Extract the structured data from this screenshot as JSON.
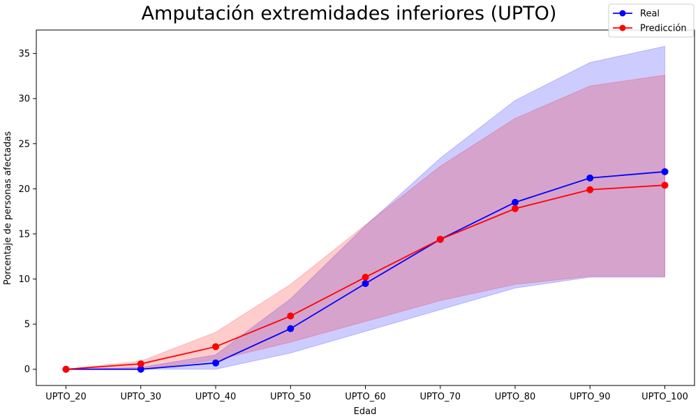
{
  "chart_data": {
    "type": "line",
    "title": "Amputación extremidades inferiores (UPTO)",
    "xlabel": "Edad",
    "ylabel": "Porcentaje de personas afectadas",
    "categories": [
      "UPTO_20",
      "UPTO_30",
      "UPTO_40",
      "UPTO_50",
      "UPTO_60",
      "UPTO_70",
      "UPTO_80",
      "UPTO_90",
      "UPTO_100"
    ],
    "ylim": [
      -1.8,
      37.6
    ],
    "yticks": [
      0,
      5,
      10,
      15,
      20,
      25,
      30,
      35
    ],
    "grid": false,
    "legend_position": "top-right",
    "series": [
      {
        "name": "Real",
        "color": "#0000ff",
        "values": [
          0.0,
          0.0,
          0.7,
          4.5,
          9.5,
          14.4,
          18.5,
          21.2,
          21.9
        ],
        "band_lower": [
          0.0,
          0.0,
          0.0,
          1.8,
          4.2,
          6.6,
          9.0,
          10.2,
          10.2
        ],
        "band_upper": [
          0.0,
          0.2,
          1.6,
          7.8,
          15.9,
          23.4,
          29.8,
          34.0,
          35.8
        ]
      },
      {
        "name": "Predicción",
        "color": "#ff0000",
        "values": [
          0.0,
          0.6,
          2.5,
          5.9,
          10.2,
          14.4,
          17.8,
          19.9,
          20.4
        ],
        "band_lower": [
          0.0,
          0.0,
          1.0,
          3.0,
          5.3,
          7.6,
          9.4,
          10.3,
          10.3
        ],
        "band_upper": [
          0.0,
          0.9,
          4.1,
          9.4,
          16.0,
          22.5,
          27.8,
          31.4,
          32.6
        ]
      }
    ]
  }
}
